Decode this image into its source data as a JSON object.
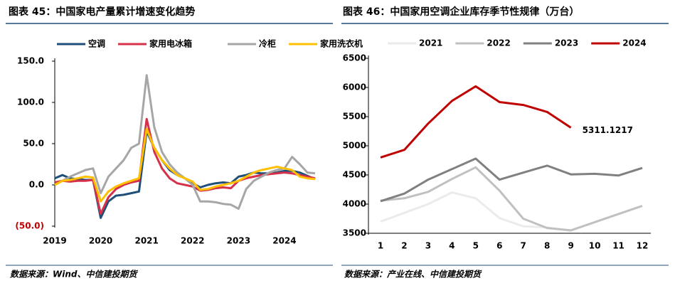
{
  "chart_data": [
    {
      "type": "line",
      "title": "图表 45：中国家电产量累计增速变化趋势",
      "source": "数据来源：Wind、中信建投期货",
      "categories": [
        "2019",
        null,
        null,
        null,
        null,
        null,
        "2020",
        null,
        null,
        null,
        null,
        null,
        "2021",
        null,
        null,
        null,
        null,
        null,
        "2022",
        null,
        null,
        null,
        null,
        null,
        "2023",
        null,
        null,
        null,
        null,
        null,
        "2024",
        null,
        null,
        null,
        null
      ],
      "series": [
        {
          "name": "空调",
          "color": "#1f4e79",
          "values": [
            8,
            12,
            8,
            7,
            6,
            6,
            -40,
            -20,
            -13,
            -12,
            -10,
            -8,
            65,
            45,
            30,
            18,
            12,
            8,
            2,
            -3,
            0,
            2,
            3,
            2,
            10,
            12,
            15,
            14,
            14,
            15,
            17,
            17,
            15,
            11,
            7
          ]
        },
        {
          "name": "家用电冰箱",
          "color": "#d6304a",
          "values": [
            3,
            5,
            4,
            5,
            5,
            6,
            -35,
            -15,
            -5,
            0,
            3,
            5,
            80,
            40,
            20,
            8,
            2,
            0,
            -2,
            -7,
            -6,
            -4,
            -3,
            -4,
            5,
            8,
            10,
            12,
            13,
            14,
            15,
            14,
            12,
            10,
            8
          ]
        },
        {
          "name": "冷柜",
          "color": "#a6a6a6",
          "values": [
            0,
            5,
            10,
            14,
            18,
            20,
            -10,
            10,
            20,
            30,
            45,
            50,
            133,
            70,
            40,
            25,
            15,
            8,
            0,
            -20,
            -20,
            -21,
            -23,
            -24,
            -29,
            -5,
            5,
            10,
            15,
            18,
            20,
            34,
            25,
            15,
            14
          ]
        },
        {
          "name": "家用洗衣机",
          "color": "#ffc000",
          "values": [
            0,
            5,
            6,
            8,
            10,
            9,
            -20,
            -8,
            -2,
            2,
            5,
            8,
            68,
            45,
            30,
            20,
            12,
            8,
            4,
            -6,
            -5,
            -2,
            0,
            2,
            5,
            10,
            15,
            18,
            20,
            22,
            20,
            18,
            10,
            8,
            7
          ]
        }
      ],
      "ylim": [
        -50,
        150
      ],
      "yticks": [
        {
          "value": -50,
          "label": "(50.0)"
        },
        {
          "value": 0,
          "label": "0.0"
        },
        {
          "value": 50,
          "label": "50.0"
        },
        {
          "value": 100,
          "label": "100.0"
        },
        {
          "value": 150,
          "label": "150.0"
        }
      ],
      "grid": false
    },
    {
      "type": "line",
      "title": "图表 46：中国家用空调企业库存季节性规律（万台）",
      "source": "数据来源：产业在线、中信建投期货",
      "categories": [
        "1",
        "2",
        "3",
        "4",
        "5",
        "6",
        "7",
        "8",
        "9",
        "10",
        "11",
        "12"
      ],
      "series": [
        {
          "name": "2021",
          "color": "#ebebeb",
          "values": [
            3700,
            3850,
            4000,
            4200,
            4100,
            3760,
            3620,
            3600,
            3540,
            null,
            null,
            null
          ]
        },
        {
          "name": "2022",
          "color": "#c0c0c0",
          "values": [
            4060,
            4100,
            4210,
            4430,
            4630,
            4230,
            3750,
            3590,
            3550,
            3690,
            3830,
            3970
          ]
        },
        {
          "name": "2023",
          "color": "#808080",
          "values": [
            4050,
            4180,
            4420,
            4600,
            4780,
            4420,
            4540,
            4660,
            4510,
            4520,
            4490,
            4620
          ]
        },
        {
          "name": "2024",
          "color": "#c00000",
          "values": [
            4800,
            4930,
            5380,
            5770,
            6020,
            5750,
            5700,
            5580,
            5311.1217,
            null,
            null,
            null
          ],
          "value_labels": [
            null,
            null,
            null,
            null,
            null,
            null,
            null,
            null,
            "5311.1217",
            null,
            null,
            null
          ]
        }
      ],
      "ylim": [
        3500,
        6500
      ],
      "yticks": [
        3500,
        4000,
        4500,
        5000,
        5500,
        6000,
        6500
      ],
      "grid": false
    }
  ]
}
